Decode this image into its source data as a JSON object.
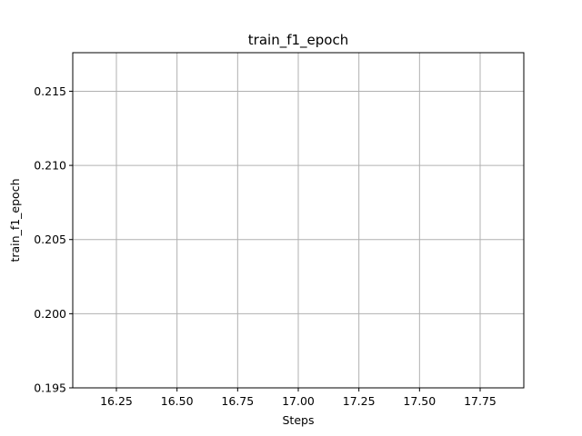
{
  "chart_data": {
    "type": "line",
    "title": "train_f1_epoch",
    "xlabel": "Steps",
    "ylabel": "train_f1_epoch",
    "xlim": [
      16.07,
      17.93
    ],
    "ylim": [
      0.195,
      0.2176
    ],
    "xticks": [
      16.25,
      16.5,
      16.75,
      17.0,
      17.25,
      17.5,
      17.75
    ],
    "xtick_labels": [
      "16.25",
      "16.50",
      "16.75",
      "17.00",
      "17.25",
      "17.50",
      "17.75"
    ],
    "yticks": [
      0.195,
      0.2,
      0.205,
      0.21,
      0.215
    ],
    "ytick_labels": [
      "0.195",
      "0.200",
      "0.205",
      "0.210",
      "0.215"
    ],
    "grid": true,
    "series": [
      {
        "values": []
      }
    ],
    "colors": {
      "grid": "#b0b0b0",
      "axes": "#000000",
      "background": "#ffffff"
    }
  }
}
